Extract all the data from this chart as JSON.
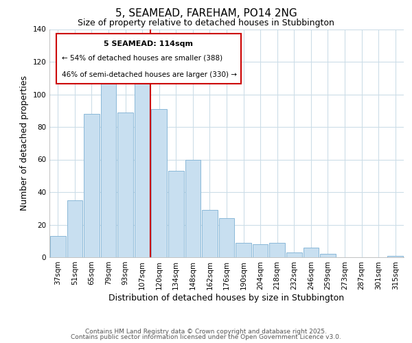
{
  "title": "5, SEAMEAD, FAREHAM, PO14 2NG",
  "subtitle": "Size of property relative to detached houses in Stubbington",
  "xlabel": "Distribution of detached houses by size in Stubbington",
  "ylabel": "Number of detached properties",
  "bar_labels": [
    "37sqm",
    "51sqm",
    "65sqm",
    "79sqm",
    "93sqm",
    "107sqm",
    "120sqm",
    "134sqm",
    "148sqm",
    "162sqm",
    "176sqm",
    "190sqm",
    "204sqm",
    "218sqm",
    "232sqm",
    "246sqm",
    "259sqm",
    "273sqm",
    "287sqm",
    "301sqm",
    "315sqm"
  ],
  "bar_values": [
    13,
    35,
    88,
    107,
    89,
    108,
    91,
    53,
    60,
    29,
    24,
    9,
    8,
    9,
    3,
    6,
    2,
    0,
    0,
    0,
    1
  ],
  "bar_color": "#c8dff0",
  "bar_edgecolor": "#8ab8d8",
  "marker_line_color": "#cc0000",
  "annotation_title": "5 SEAMEAD: 114sqm",
  "annotation_line1": "← 54% of detached houses are smaller (388)",
  "annotation_line2": "46% of semi-detached houses are larger (330) →",
  "annotation_box_edgecolor": "#cc0000",
  "annotation_box_facecolor": "#ffffff",
  "ylim": [
    0,
    140
  ],
  "yticks": [
    0,
    20,
    40,
    60,
    80,
    100,
    120,
    140
  ],
  "footer1": "Contains HM Land Registry data © Crown copyright and database right 2025.",
  "footer2": "Contains public sector information licensed under the Open Government Licence v3.0.",
  "background_color": "#ffffff",
  "grid_color": "#ccdde8",
  "title_fontsize": 11,
  "subtitle_fontsize": 9,
  "axis_label_fontsize": 9,
  "tick_fontsize": 7.5,
  "footer_fontsize": 6.5
}
